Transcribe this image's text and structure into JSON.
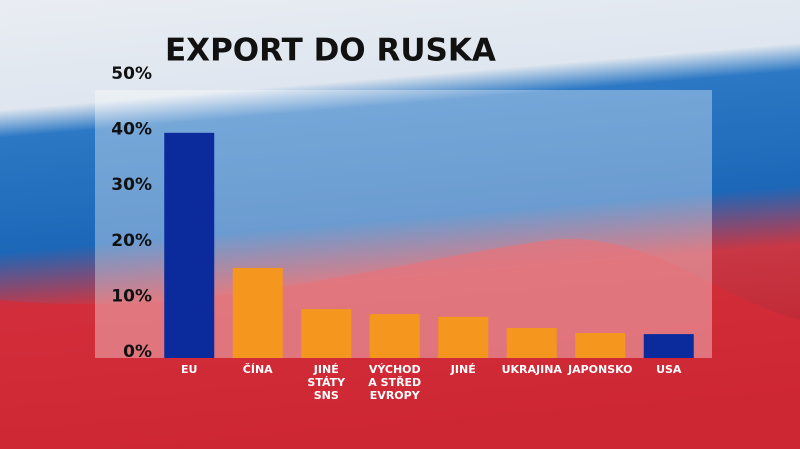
{
  "chart_data": {
    "type": "bar",
    "title": "EXPORT DO RUSKA",
    "categories": [
      "EU",
      "ČÍNA",
      "JINÉ\nSTÁTY\nSNS",
      "VÝCHOD\nA STŘED\nEVROPY",
      "JINÉ",
      "UKRAJINA",
      "JAPONSKO",
      "USA"
    ],
    "values": [
      40.5,
      16.2,
      8.8,
      7.9,
      7.4,
      5.4,
      4.5,
      4.3
    ],
    "colors": [
      "#0b2b9c",
      "#f5961e",
      "#f5961e",
      "#f5961e",
      "#f5961e",
      "#f5961e",
      "#f5961e",
      "#0b2b9c"
    ],
    "ylim": [
      0,
      50
    ],
    "yticks": [
      {
        "value": 0,
        "label": "0%"
      },
      {
        "value": 10,
        "label": "10%"
      },
      {
        "value": 20,
        "label": "20%"
      },
      {
        "value": 30,
        "label": "30%"
      },
      {
        "value": 40,
        "label": "40%"
      },
      {
        "value": 50,
        "label": "50%"
      }
    ]
  }
}
